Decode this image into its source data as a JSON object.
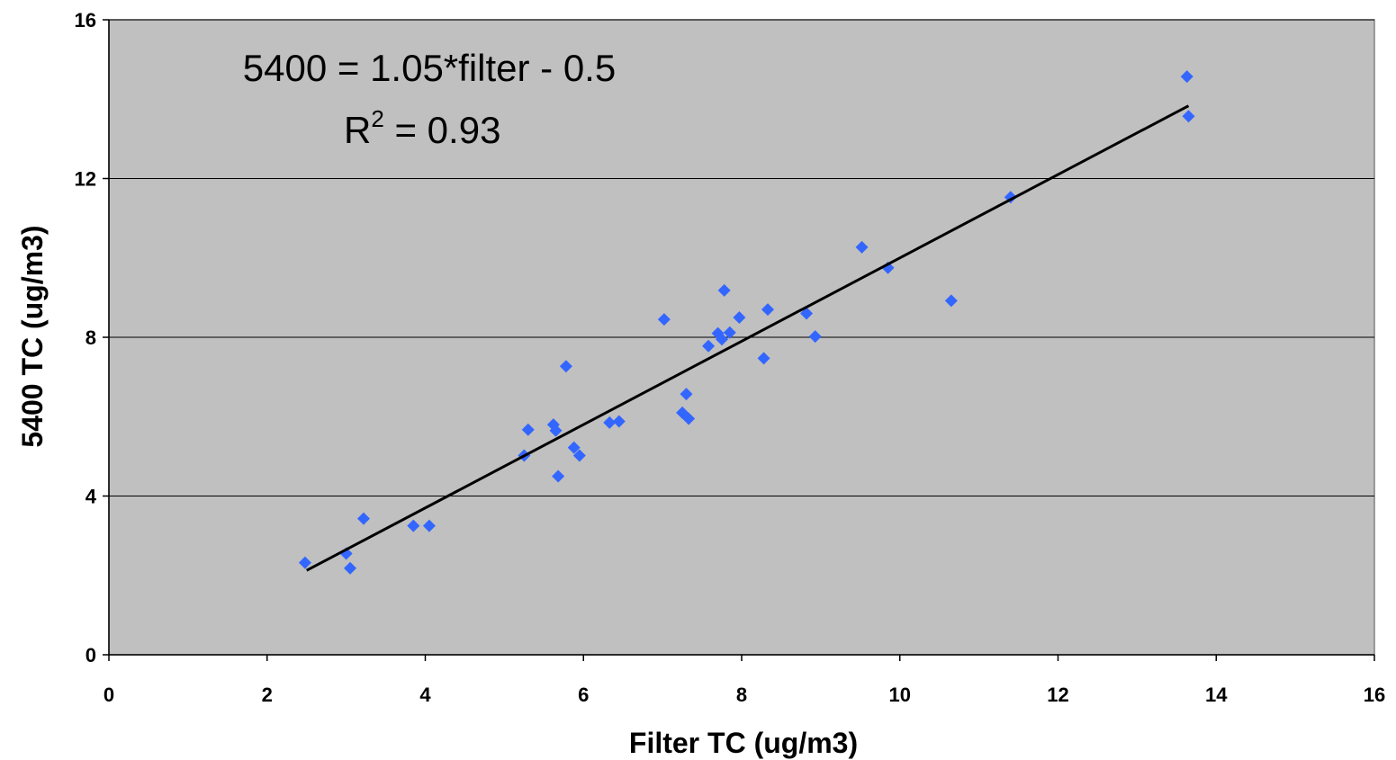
{
  "chart_data": {
    "type": "scatter",
    "xlabel": "Filter TC (ug/m3)",
    "ylabel": "5400 TC (ug/m3)",
    "xlim": [
      0,
      16
    ],
    "ylim": [
      0,
      16
    ],
    "x_ticks": [
      0,
      2,
      4,
      6,
      8,
      10,
      12,
      14,
      16
    ],
    "y_ticks": [
      0,
      4,
      8,
      12,
      16
    ],
    "grid": "horizontal",
    "plot_background": "#c0c0c0",
    "marker_color": "#3366ff",
    "trendline_color": "#000000",
    "annotation": {
      "equation": "5400 = 1.05*filter - 0.5",
      "r_label": "R",
      "r_exponent": "2",
      "r_value": " = 0.93"
    },
    "trendline": {
      "slope": 1.05,
      "intercept": -0.5,
      "x_start": 2.5,
      "x_end": 13.65
    },
    "points": [
      {
        "x": 2.48,
        "y": 2.32
      },
      {
        "x": 3.0,
        "y": 2.55
      },
      {
        "x": 3.05,
        "y": 2.18
      },
      {
        "x": 3.22,
        "y": 3.43
      },
      {
        "x": 3.85,
        "y": 3.25
      },
      {
        "x": 4.05,
        "y": 3.25
      },
      {
        "x": 5.25,
        "y": 5.02
      },
      {
        "x": 5.3,
        "y": 5.67
      },
      {
        "x": 5.62,
        "y": 5.8
      },
      {
        "x": 5.65,
        "y": 5.65
      },
      {
        "x": 5.68,
        "y": 4.5
      },
      {
        "x": 5.78,
        "y": 7.27
      },
      {
        "x": 5.88,
        "y": 5.22
      },
      {
        "x": 5.95,
        "y": 5.02
      },
      {
        "x": 6.33,
        "y": 5.85
      },
      {
        "x": 6.45,
        "y": 5.88
      },
      {
        "x": 7.02,
        "y": 8.45
      },
      {
        "x": 7.25,
        "y": 6.1
      },
      {
        "x": 7.3,
        "y": 6.57
      },
      {
        "x": 7.33,
        "y": 5.95
      },
      {
        "x": 7.58,
        "y": 7.78
      },
      {
        "x": 7.7,
        "y": 8.1
      },
      {
        "x": 7.75,
        "y": 7.95
      },
      {
        "x": 7.78,
        "y": 9.18
      },
      {
        "x": 7.85,
        "y": 8.12
      },
      {
        "x": 7.97,
        "y": 8.5
      },
      {
        "x": 8.28,
        "y": 7.47
      },
      {
        "x": 8.33,
        "y": 8.7
      },
      {
        "x": 8.82,
        "y": 8.6
      },
      {
        "x": 8.93,
        "y": 8.02
      },
      {
        "x": 9.52,
        "y": 10.27
      },
      {
        "x": 9.85,
        "y": 9.75
      },
      {
        "x": 10.65,
        "y": 8.92
      },
      {
        "x": 11.4,
        "y": 11.53
      },
      {
        "x": 13.63,
        "y": 14.57
      },
      {
        "x": 13.65,
        "y": 13.57
      }
    ]
  }
}
